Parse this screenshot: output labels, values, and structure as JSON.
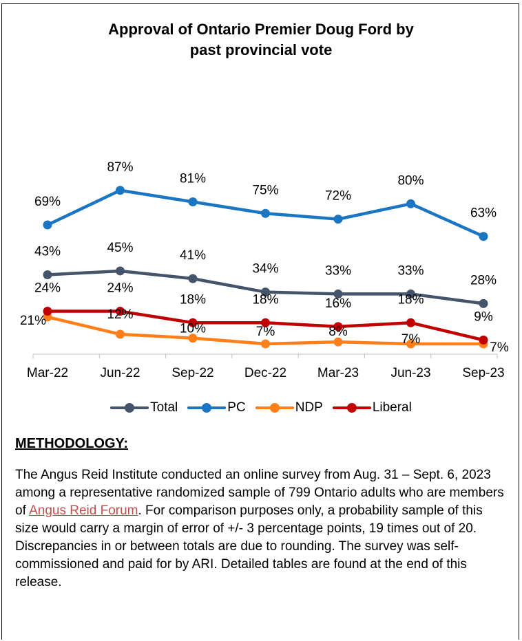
{
  "title_line1": "Approval of Ontario Premier Doug Ford by",
  "title_line2": "past provincial vote",
  "chart_data": {
    "type": "line",
    "title": "Approval of Ontario Premier Doug Ford by past provincial vote",
    "categories": [
      "Mar-22",
      "Jun-22",
      "Sep-22",
      "Dec-22",
      "Mar-23",
      "Jun-23",
      "Sep-23"
    ],
    "unit": "%",
    "series": [
      {
        "name": "Total",
        "color": "#44546a",
        "values": [
          43,
          45,
          41,
          34,
          33,
          33,
          28
        ],
        "labels": [
          "43%",
          "45%",
          "41%",
          "34%",
          "33%",
          "33%",
          "28%"
        ]
      },
      {
        "name": "PC",
        "color": "#1a75c2",
        "values": [
          69,
          87,
          81,
          75,
          72,
          80,
          63
        ],
        "labels": [
          "69%",
          "87%",
          "81%",
          "75%",
          "72%",
          "80%",
          "63%"
        ]
      },
      {
        "name": "NDP",
        "color": "#ff7f1a",
        "values": [
          21,
          12,
          10,
          7,
          8,
          7,
          7
        ],
        "labels": [
          "21%",
          "12%",
          "10%",
          "7%",
          "8%",
          "7%",
          "7%"
        ]
      },
      {
        "name": "Liberal",
        "color": "#c00000",
        "values": [
          24,
          24,
          18,
          18,
          16,
          18,
          9
        ],
        "labels": [
          "24%",
          "24%",
          "18%",
          "18%",
          "16%",
          "18%",
          "9%"
        ]
      }
    ],
    "legend_position": "bottom",
    "grid": false
  },
  "methodology": {
    "heading": "METHODOLOGY:",
    "text_before_link": "The Angus Reid Institute conducted an online survey from Aug. 31 – Sept. 6, 2023 among a representative randomized sample of 799 Ontario adults who are members of ",
    "link_text": "Angus Reid Forum",
    "text_after_link": ". For comparison purposes only, a probability sample of this size would carry a margin of error of +/- 3 percentage points, 19 times out of 20. Discrepancies in or between totals are due to rounding. The survey was self-commissioned and paid for by ARI. Detailed tables are found at the end of this release."
  }
}
